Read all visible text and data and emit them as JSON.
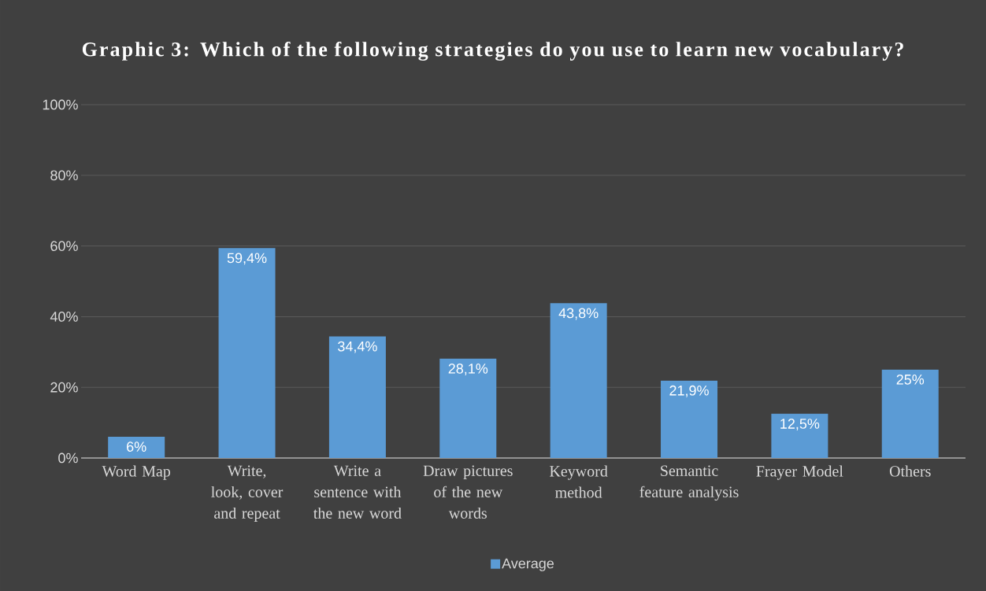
{
  "chart_data": {
    "type": "bar",
    "title": "Graphic 3: Which of the following strategies do you use to learn new vocabulary?",
    "categories": [
      "Word Map",
      "Write, look, cover and repeat",
      "Write a sentence with the new word",
      "Draw pictures of the new words",
      "Keyword method",
      "Semantic feature analysis",
      "Frayer Model",
      "Others"
    ],
    "series": [
      {
        "name": "Average",
        "color": "#5b9bd5",
        "values": [
          6,
          59.4,
          34.4,
          28.1,
          43.8,
          21.9,
          12.5,
          25
        ],
        "value_labels": [
          "6%",
          "59,4%",
          "34,4%",
          "28,1%",
          "43,8%",
          "21,9%",
          "12,5%",
          "25%"
        ]
      }
    ],
    "ylim": [
      0,
      100
    ],
    "yticks": [
      {
        "value": 0,
        "label": "0%"
      },
      {
        "value": 20,
        "label": "20%"
      },
      {
        "value": 40,
        "label": "40%"
      },
      {
        "value": 60,
        "label": "60%"
      },
      {
        "value": 80,
        "label": "80%"
      },
      {
        "value": 100,
        "label": "100%"
      }
    ],
    "grid": "y",
    "legend": "bottom"
  }
}
